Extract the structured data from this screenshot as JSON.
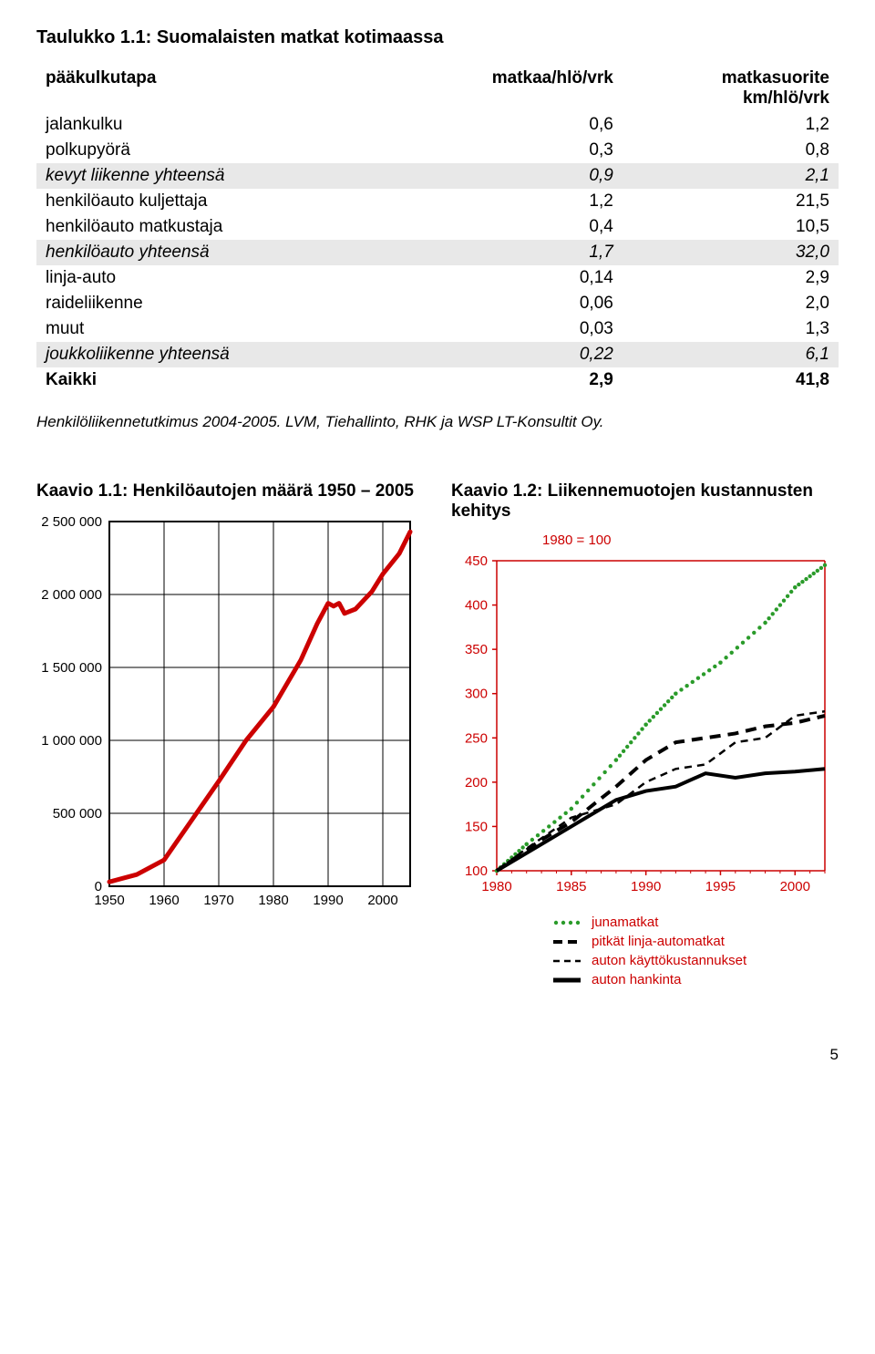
{
  "table": {
    "title": "Taulukko 1.1: Suomalaisten matkat kotimaassa",
    "headers": {
      "mode": "pääkulkutapa",
      "trips": "matkaa/hlö/vrk",
      "dist_line1": "matkasuorite",
      "dist_line2": "km/hlö/vrk"
    },
    "rows": [
      {
        "label": "jalankulku",
        "v1": "0,6",
        "v2": "1,2",
        "shaded": false
      },
      {
        "label": "polkupyörä",
        "v1": "0,3",
        "v2": "0,8",
        "shaded": false
      },
      {
        "label": "kevyt liikenne yhteensä",
        "v1": "0,9",
        "v2": "2,1",
        "shaded": true,
        "italic": true
      },
      {
        "label": "henkilöauto kuljettaja",
        "v1": "1,2",
        "v2": "21,5",
        "shaded": false
      },
      {
        "label": "henkilöauto matkustaja",
        "v1": "0,4",
        "v2": "10,5",
        "shaded": false
      },
      {
        "label": "henkilöauto yhteensä",
        "v1": "1,7",
        "v2": "32,0",
        "shaded": true,
        "italic": true
      },
      {
        "label": "linja-auto",
        "v1": "0,14",
        "v2": "2,9",
        "shaded": false
      },
      {
        "label": "raideliikenne",
        "v1": "0,06",
        "v2": "2,0",
        "shaded": false
      },
      {
        "label": "muut",
        "v1": "0,03",
        "v2": "1,3",
        "shaded": false
      },
      {
        "label": "joukkoliikenne yhteensä",
        "v1": "0,22",
        "v2": "6,1",
        "shaded": true,
        "italic": true
      },
      {
        "label": "Kaikki",
        "v1": "2,9",
        "v2": "41,8",
        "shaded": false,
        "bold": true
      }
    ],
    "source": "Henkilöliikennetutkimus 2004-2005. LVM, Tiehallinto, RHK ja WSP LT-Konsultit Oy."
  },
  "chart1": {
    "title": "Kaavio 1.1: Henkilöautojen määrä 1950 – 2005",
    "type": "line",
    "ylim": [
      0,
      2500000
    ],
    "ytick_step": 500000,
    "yticks": [
      "0",
      "500 000",
      "1 000 000",
      "1 500 000",
      "2 000 000",
      "2 500 000"
    ],
    "xlim": [
      1950,
      2005
    ],
    "xticks": [
      "1950",
      "1960",
      "1970",
      "1980",
      "1990",
      "2000"
    ],
    "line_color": "#cc0000",
    "grid_color": "#000000",
    "background_color": "#ffffff",
    "data": [
      {
        "x": 1950,
        "y": 30000
      },
      {
        "x": 1955,
        "y": 80000
      },
      {
        "x": 1960,
        "y": 180000
      },
      {
        "x": 1965,
        "y": 450000
      },
      {
        "x": 1970,
        "y": 720000
      },
      {
        "x": 1975,
        "y": 1000000
      },
      {
        "x": 1980,
        "y": 1230000
      },
      {
        "x": 1985,
        "y": 1550000
      },
      {
        "x": 1988,
        "y": 1800000
      },
      {
        "x": 1990,
        "y": 1940000
      },
      {
        "x": 1991,
        "y": 1920000
      },
      {
        "x": 1992,
        "y": 1940000
      },
      {
        "x": 1993,
        "y": 1870000
      },
      {
        "x": 1995,
        "y": 1900000
      },
      {
        "x": 1998,
        "y": 2020000
      },
      {
        "x": 2000,
        "y": 2140000
      },
      {
        "x": 2003,
        "y": 2280000
      },
      {
        "x": 2005,
        "y": 2430000
      }
    ]
  },
  "chart2": {
    "title": "Kaavio 1.2: Liikennemuotojen kustannusten kehitys",
    "type": "line",
    "ref_label": "1980 = 100",
    "ylim": [
      100,
      450
    ],
    "ytick_step": 50,
    "yticks": [
      "100",
      "150",
      "200",
      "250",
      "300",
      "350",
      "400",
      "450"
    ],
    "xlim": [
      1980,
      2000
    ],
    "xticks": [
      "1980",
      "1985",
      "1990",
      "1995",
      "2000"
    ],
    "grid_color": "#cc0000",
    "axis_color": "#cc0000",
    "background_color": "#ffffff",
    "series": [
      {
        "name": "junamatkat",
        "style": "dotted",
        "color": "#2a9b2a",
        "data": [
          {
            "x": 1980,
            "y": 100
          },
          {
            "x": 1982,
            "y": 130
          },
          {
            "x": 1985,
            "y": 170
          },
          {
            "x": 1988,
            "y": 225
          },
          {
            "x": 1990,
            "y": 265
          },
          {
            "x": 1992,
            "y": 300
          },
          {
            "x": 1995,
            "y": 335
          },
          {
            "x": 1998,
            "y": 380
          },
          {
            "x": 2000,
            "y": 420
          },
          {
            "x": 2002,
            "y": 445
          }
        ]
      },
      {
        "name": "pitkät linja-automatkat",
        "style": "dashed-thick",
        "color": "#000000",
        "data": [
          {
            "x": 1980,
            "y": 100
          },
          {
            "x": 1983,
            "y": 135
          },
          {
            "x": 1985,
            "y": 155
          },
          {
            "x": 1988,
            "y": 195
          },
          {
            "x": 1990,
            "y": 225
          },
          {
            "x": 1992,
            "y": 245
          },
          {
            "x": 1994,
            "y": 250
          },
          {
            "x": 1996,
            "y": 255
          },
          {
            "x": 1998,
            "y": 263
          },
          {
            "x": 2000,
            "y": 267
          },
          {
            "x": 2002,
            "y": 275
          }
        ]
      },
      {
        "name": "auton käyttökustannukset",
        "style": "dashed-thin",
        "color": "#000000",
        "data": [
          {
            "x": 1980,
            "y": 100
          },
          {
            "x": 1982,
            "y": 125
          },
          {
            "x": 1985,
            "y": 160
          },
          {
            "x": 1988,
            "y": 175
          },
          {
            "x": 1990,
            "y": 200
          },
          {
            "x": 1992,
            "y": 215
          },
          {
            "x": 1994,
            "y": 220
          },
          {
            "x": 1996,
            "y": 245
          },
          {
            "x": 1998,
            "y": 250
          },
          {
            "x": 2000,
            "y": 275
          },
          {
            "x": 2002,
            "y": 280
          }
        ]
      },
      {
        "name": "auton hankinta",
        "style": "solid",
        "color": "#000000",
        "data": [
          {
            "x": 1980,
            "y": 100
          },
          {
            "x": 1983,
            "y": 130
          },
          {
            "x": 1985,
            "y": 150
          },
          {
            "x": 1988,
            "y": 180
          },
          {
            "x": 1990,
            "y": 190
          },
          {
            "x": 1992,
            "y": 195
          },
          {
            "x": 1994,
            "y": 210
          },
          {
            "x": 1996,
            "y": 205
          },
          {
            "x": 1998,
            "y": 210
          },
          {
            "x": 2000,
            "y": 212
          },
          {
            "x": 2002,
            "y": 215
          }
        ]
      }
    ]
  },
  "page_number": "5"
}
